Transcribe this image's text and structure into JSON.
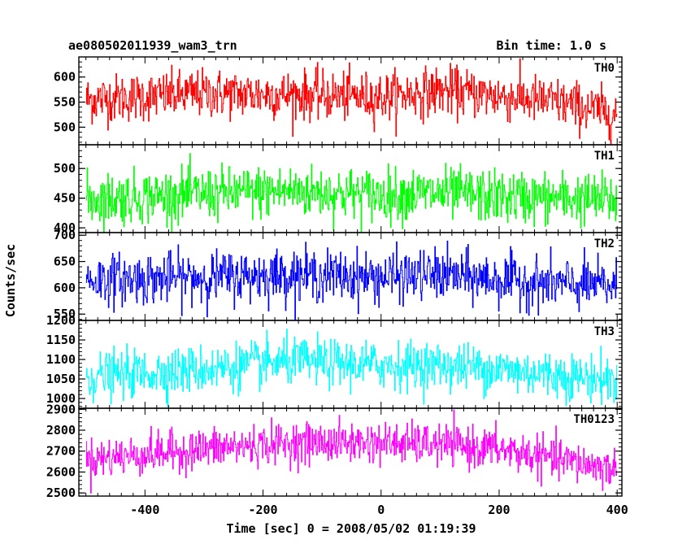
{
  "header": {
    "title": "ae080502011939_wam3_trn",
    "bin_time": "Bin time: 1.0 s"
  },
  "chart_data": {
    "type": "line",
    "title": "ae080502011939_wam3_trn",
    "annotation": "Bin time: 1.0 s",
    "xlabel": "Time [sec] 0 = 2008/05/02 01:19:39",
    "ylabel": "Counts/sec",
    "xlim": [
      -512,
      408
    ],
    "x_ticks": [
      -400,
      -200,
      0,
      200,
      400
    ],
    "x_step": 1,
    "grid": false,
    "panels": [
      {
        "name": "TH0",
        "color": "#ff0000",
        "ylim": [
          465,
          640
        ],
        "y_ticks": [
          500,
          550,
          600
        ],
        "trend": {
          "x": [
            -500,
            -300,
            -150,
            0,
            100,
            200,
            300,
            400
          ],
          "y": [
            555,
            567,
            565,
            560,
            573,
            562,
            550,
            525
          ]
        },
        "noise_sd": 24
      },
      {
        "name": "TH1",
        "color": "#00ff00",
        "ylim": [
          392,
          540
        ],
        "y_ticks": [
          400,
          450,
          500
        ],
        "trend": {
          "x": [
            -500,
            -300,
            -150,
            0,
            100,
            200,
            300,
            400
          ],
          "y": [
            448,
            457,
            462,
            455,
            458,
            452,
            450,
            447
          ]
        },
        "noise_sd": 22
      },
      {
        "name": "TH2",
        "color": "#0000ff",
        "ylim": [
          538,
          705
        ],
        "y_ticks": [
          550,
          600,
          650,
          700
        ],
        "trend": {
          "x": [
            -500,
            -300,
            -150,
            0,
            100,
            200,
            300,
            400
          ],
          "y": [
            615,
            620,
            625,
            620,
            625,
            615,
            607,
            603
          ]
        },
        "noise_sd": 24
      },
      {
        "name": "TH3",
        "color": "#00ffff",
        "ylim": [
          975,
          1200
        ],
        "y_ticks": [
          1000,
          1050,
          1100,
          1150,
          1200
        ],
        "trend": {
          "x": [
            -500,
            -300,
            -150,
            0,
            100,
            200,
            300,
            400
          ],
          "y": [
            1055,
            1075,
            1095,
            1085,
            1085,
            1075,
            1060,
            1045
          ]
        },
        "noise_sd": 30
      },
      {
        "name": "TH0123",
        "color": "#ff00ff",
        "ylim": [
          2485,
          2905
        ],
        "y_ticks": [
          2500,
          2600,
          2700,
          2800,
          2900
        ],
        "trend": {
          "x": [
            -500,
            -300,
            -150,
            0,
            100,
            200,
            300,
            400
          ],
          "y": [
            2660,
            2710,
            2740,
            2740,
            2730,
            2710,
            2660,
            2610
          ]
        },
        "noise_sd": 48
      }
    ]
  }
}
